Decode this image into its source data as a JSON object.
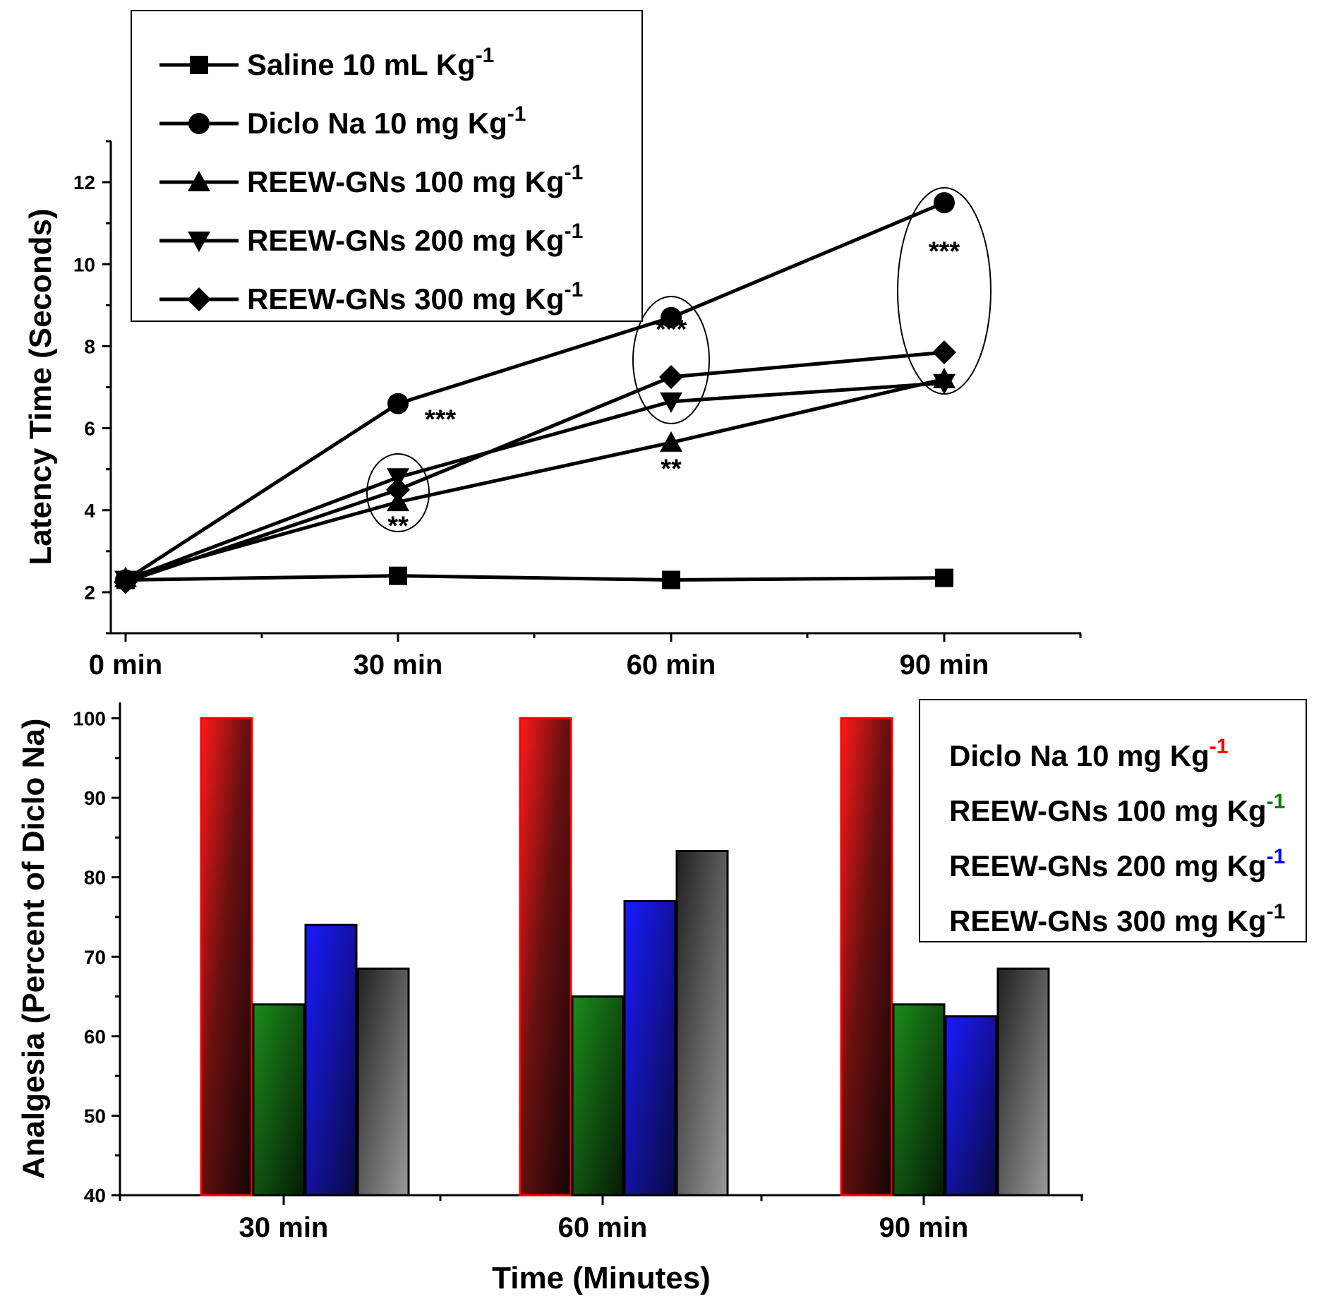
{
  "chart_data": [
    {
      "type": "line",
      "categories": [
        "0 min",
        "30 min",
        "60 min",
        "90 min"
      ],
      "xlabel": "",
      "ylabel": "Latency Time (Seconds)",
      "ylim": [
        1,
        13
      ],
      "yticks": [
        2,
        4,
        6,
        8,
        10,
        12
      ],
      "grid": false,
      "legend_position": "top-left",
      "series": [
        {
          "name": "Saline 10 mL Kg",
          "sup": "-1",
          "marker": "square",
          "values": [
            2.3,
            2.4,
            2.3,
            2.35
          ]
        },
        {
          "name": "Diclo Na 10 mg Kg",
          "sup": "-1",
          "marker": "circle",
          "values": [
            2.3,
            6.6,
            8.7,
            11.5
          ]
        },
        {
          "name": "REEW-GNs 100 mg Kg",
          "sup": "-1",
          "marker": "triangle-up",
          "values": [
            2.35,
            4.2,
            5.65,
            7.2
          ]
        },
        {
          "name": "REEW-GNs 200 mg Kg",
          "sup": "-1",
          "marker": "triangle-down",
          "values": [
            2.3,
            4.8,
            6.65,
            7.1
          ]
        },
        {
          "name": "REEW-GNs 300 mg Kg",
          "sup": "-1",
          "marker": "diamond",
          "values": [
            2.25,
            4.5,
            7.25,
            7.85
          ]
        }
      ],
      "annotations": [
        {
          "text": "***",
          "x": "30 min",
          "y": 6.0
        },
        {
          "text": "**",
          "x": "30 min",
          "y": 3.4
        },
        {
          "text": "***",
          "x": "60 min",
          "y": 8.2
        },
        {
          "text": "**",
          "x": "60 min",
          "y": 4.8
        },
        {
          "text": "***",
          "x": "90 min",
          "y": 10.1
        }
      ]
    },
    {
      "type": "bar",
      "categories": [
        "30 min",
        "60 min",
        "90 min"
      ],
      "xlabel": "Time (Minutes)",
      "ylabel": "Analgesia (Percent of Diclo Na)",
      "ylim": [
        40,
        102
      ],
      "yticks": [
        40,
        50,
        60,
        70,
        80,
        90,
        100
      ],
      "grid": false,
      "legend_position": "top-right",
      "series": [
        {
          "name": "Diclo Na 10 mg Kg",
          "sup": "-1",
          "color": "#ff0000",
          "values": [
            100,
            100,
            100
          ]
        },
        {
          "name": "REEW-GNs 100 mg Kg",
          "sup": "-1",
          "color": "#008000",
          "values": [
            64,
            65,
            64
          ]
        },
        {
          "name": "REEW-GNs 200 mg Kg",
          "sup": "-1",
          "color": "#0000ff",
          "values": [
            74,
            77,
            62.5
          ]
        },
        {
          "name": "REEW-GNs 300 mg Kg",
          "sup": "-1",
          "color": "#000000",
          "values": [
            68.5,
            83.3,
            68.5
          ]
        }
      ]
    }
  ]
}
